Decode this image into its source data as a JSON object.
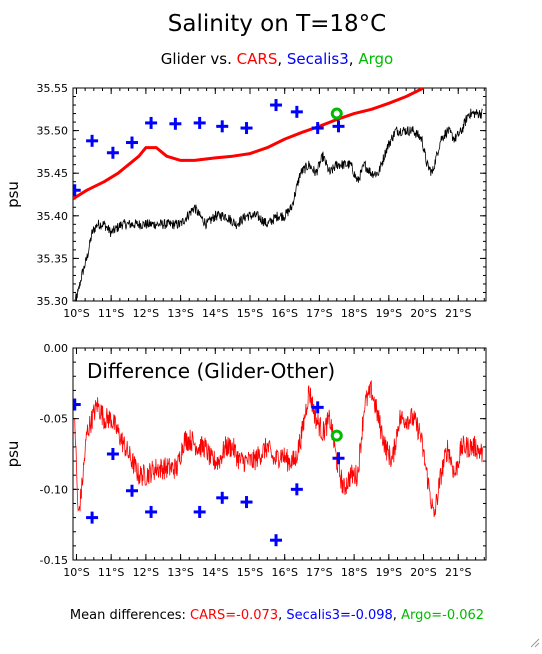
{
  "title": "Salinity on T=18°C",
  "subtitle": {
    "parts": [
      {
        "text": "Glider vs. ",
        "color": "#000000"
      },
      {
        "text": "CARS",
        "color": "#ff0000"
      },
      {
        "text": ", ",
        "color": "#000000"
      },
      {
        "text": "Secalis3",
        "color": "#0000ff"
      },
      {
        "text": ", ",
        "color": "#000000"
      },
      {
        "text": "Argo",
        "color": "#00bb00"
      }
    ]
  },
  "footer": {
    "parts": [
      {
        "text": "Mean differences: ",
        "color": "#000000"
      },
      {
        "text": "CARS=-0.073",
        "color": "#ff0000"
      },
      {
        "text": ", ",
        "color": "#000000"
      },
      {
        "text": "Secalis3=-0.098",
        "color": "#0000ff"
      },
      {
        "text": ", ",
        "color": "#000000"
      },
      {
        "text": "Argo=-0.062",
        "color": "#00bb00"
      }
    ]
  },
  "colors": {
    "glider": "#000000",
    "cars": "#ff0000",
    "secalis3": "#0000ff",
    "argo": "#00bb00"
  },
  "chart_data": [
    {
      "type": "line",
      "title": "",
      "xlabel": "",
      "ylabel": "psu",
      "xlim": [
        9.9,
        21.8
      ],
      "ylim": [
        35.3,
        35.55
      ],
      "x_ticks": [
        10,
        11,
        12,
        13,
        14,
        15,
        16,
        17,
        18,
        19,
        20,
        21
      ],
      "x_tick_labels": [
        "10°S",
        "11°S",
        "12°S",
        "13°S",
        "14°S",
        "15°S",
        "16°S",
        "17°S",
        "18°S",
        "19°S",
        "20°S",
        "21°S"
      ],
      "y_ticks": [
        35.3,
        35.35,
        35.4,
        35.45,
        35.5,
        35.55
      ],
      "y_tick_labels": [
        "35.30",
        "35.35",
        "35.40",
        "35.45",
        "35.50",
        "35.55"
      ],
      "grid": false,
      "series": [
        {
          "key": "glider",
          "style": "line-noisy",
          "x": [
            9.95,
            10.05,
            10.15,
            10.3,
            10.45,
            10.6,
            10.8,
            11.0,
            11.3,
            11.6,
            11.9,
            12.2,
            12.5,
            12.8,
            13.0,
            13.2,
            13.4,
            13.55,
            13.75,
            14.0,
            14.3,
            14.6,
            14.9,
            15.2,
            15.5,
            15.8,
            16.0,
            16.2,
            16.45,
            16.7,
            16.9,
            17.1,
            17.3,
            17.5,
            17.7,
            17.9,
            18.1,
            18.3,
            18.5,
            18.7,
            18.95,
            19.2,
            19.45,
            19.7,
            19.95,
            20.1,
            20.25,
            20.5,
            20.7,
            20.9,
            21.1,
            21.3,
            21.5,
            21.7
          ],
          "values": [
            35.3,
            35.31,
            35.33,
            35.35,
            35.38,
            35.39,
            35.39,
            35.38,
            35.39,
            35.39,
            35.39,
            35.39,
            35.39,
            35.39,
            35.39,
            35.4,
            35.41,
            35.4,
            35.39,
            35.4,
            35.4,
            35.39,
            35.4,
            35.4,
            35.39,
            35.4,
            35.4,
            35.41,
            35.45,
            35.46,
            35.45,
            35.47,
            35.45,
            35.46,
            35.46,
            35.46,
            35.44,
            35.46,
            35.45,
            35.45,
            35.48,
            35.5,
            35.5,
            35.5,
            35.49,
            35.46,
            35.45,
            35.49,
            35.5,
            35.49,
            35.5,
            35.52,
            35.52,
            35.52
          ],
          "noise": 0.006
        },
        {
          "key": "cars",
          "style": "line-thick",
          "x": [
            9.9,
            10.3,
            10.8,
            11.2,
            11.5,
            11.8,
            12.0,
            12.3,
            12.6,
            13.0,
            13.4,
            14.0,
            14.5,
            15.0,
            15.5,
            16.0,
            16.5,
            17.0,
            17.5,
            18.0,
            18.5,
            19.0,
            19.5,
            20.0
          ],
          "values": [
            35.42,
            35.43,
            35.44,
            35.45,
            35.46,
            35.47,
            35.48,
            35.48,
            35.47,
            35.465,
            35.465,
            35.468,
            35.47,
            35.473,
            35.48,
            35.49,
            35.498,
            35.505,
            35.513,
            35.52,
            35.525,
            35.532,
            35.54,
            35.55
          ]
        },
        {
          "key": "secalis3",
          "style": "plus",
          "x": [
            9.95,
            10.45,
            11.05,
            11.6,
            12.15,
            12.85,
            13.55,
            14.2,
            14.9,
            15.75,
            16.35,
            16.95,
            17.55
          ],
          "values": [
            35.43,
            35.488,
            35.474,
            35.486,
            35.509,
            35.508,
            35.509,
            35.505,
            35.503,
            35.53,
            35.522,
            35.503,
            35.505
          ]
        },
        {
          "key": "argo",
          "style": "circle",
          "x": [
            17.5
          ],
          "values": [
            35.52
          ]
        }
      ]
    },
    {
      "type": "line",
      "title": "Difference (Glider-Other)",
      "xlabel": "",
      "ylabel": "psu",
      "xlim": [
        9.9,
        21.8
      ],
      "ylim": [
        -0.15,
        0.0
      ],
      "x_ticks": [
        10,
        11,
        12,
        13,
        14,
        15,
        16,
        17,
        18,
        19,
        20,
        21
      ],
      "x_tick_labels": [
        "10°S",
        "11°S",
        "12°S",
        "13°S",
        "14°S",
        "15°S",
        "16°S",
        "17°S",
        "18°S",
        "19°S",
        "20°S",
        "21°S"
      ],
      "y_ticks": [
        -0.15,
        -0.1,
        -0.05,
        0.0
      ],
      "y_tick_labels": [
        "-0.15",
        "-0.10",
        "-0.05",
        "0.00"
      ],
      "grid": false,
      "series": [
        {
          "key": "cars",
          "style": "line-noisy",
          "x": [
            9.95,
            10.05,
            10.15,
            10.3,
            10.45,
            10.6,
            10.8,
            11.0,
            11.2,
            11.4,
            11.6,
            11.8,
            12.0,
            12.3,
            12.6,
            12.9,
            13.1,
            13.3,
            13.5,
            13.7,
            13.9,
            14.1,
            14.3,
            14.5,
            14.7,
            14.9,
            15.1,
            15.3,
            15.5,
            15.7,
            15.9,
            16.1,
            16.3,
            16.5,
            16.7,
            16.9,
            17.1,
            17.3,
            17.5,
            17.7,
            17.9,
            18.1,
            18.3,
            18.5,
            18.7,
            18.9,
            19.1,
            19.3,
            19.5,
            19.7,
            19.9,
            20.1,
            20.3,
            20.5,
            20.7,
            20.9,
            21.1,
            21.3,
            21.5,
            21.7
          ],
          "values": [
            -0.05,
            -0.12,
            -0.1,
            -0.06,
            -0.05,
            -0.04,
            -0.05,
            -0.05,
            -0.06,
            -0.07,
            -0.08,
            -0.09,
            -0.09,
            -0.085,
            -0.085,
            -0.085,
            -0.065,
            -0.065,
            -0.07,
            -0.07,
            -0.08,
            -0.08,
            -0.07,
            -0.07,
            -0.08,
            -0.08,
            -0.08,
            -0.075,
            -0.07,
            -0.08,
            -0.075,
            -0.08,
            -0.08,
            -0.06,
            -0.03,
            -0.05,
            -0.06,
            -0.05,
            -0.08,
            -0.1,
            -0.09,
            -0.09,
            -0.04,
            -0.03,
            -0.05,
            -0.07,
            -0.08,
            -0.05,
            -0.05,
            -0.05,
            -0.06,
            -0.09,
            -0.12,
            -0.09,
            -0.07,
            -0.09,
            -0.07,
            -0.07,
            -0.07,
            -0.075
          ],
          "noise": 0.008
        },
        {
          "key": "secalis3",
          "style": "plus",
          "x": [
            9.95,
            10.45,
            11.05,
            11.6,
            12.15,
            13.55,
            14.2,
            14.9,
            15.75,
            16.35,
            16.95,
            17.55
          ],
          "values": [
            -0.04,
            -0.12,
            -0.075,
            -0.101,
            -0.116,
            -0.116,
            -0.106,
            -0.109,
            -0.136,
            -0.1,
            -0.042,
            -0.078
          ]
        },
        {
          "key": "argo",
          "style": "circle",
          "x": [
            17.5
          ],
          "values": [
            -0.062
          ]
        }
      ]
    }
  ]
}
